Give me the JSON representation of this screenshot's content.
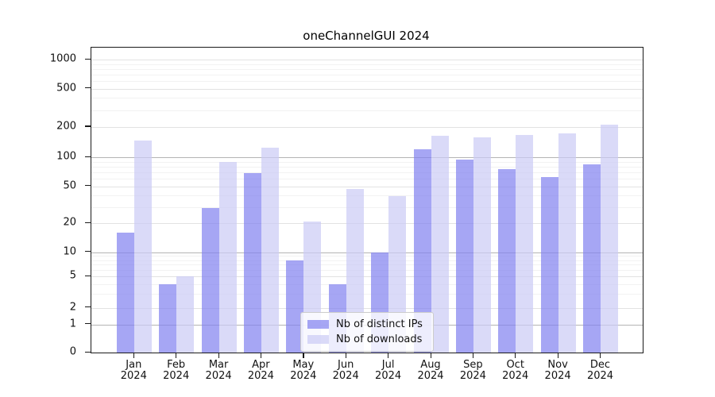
{
  "title": "oneChannelGUI 2024",
  "legend": {
    "items": [
      {
        "label": "Nb of distinct IPs",
        "color": "rgba(128,128,239,0.7)"
      },
      {
        "label": "Nb of downloads",
        "color": "rgba(202,202,245,0.7)"
      }
    ]
  },
  "chart_data": {
    "type": "bar",
    "title": "oneChannelGUI 2024",
    "categories": [
      "Jan 2024",
      "Feb 2024",
      "Mar 2024",
      "Apr 2024",
      "May 2024",
      "Jun 2024",
      "Jul 2024",
      "Aug 2024",
      "Sep 2024",
      "Oct 2024",
      "Nov 2024",
      "Dec 2024"
    ],
    "series": [
      {
        "name": "Nb of distinct IPs",
        "color": "rgba(128,128,239,0.7)",
        "values": [
          16,
          4,
          29,
          69,
          8,
          4,
          10,
          120,
          95,
          75,
          62,
          84
        ]
      },
      {
        "name": "Nb of downloads",
        "color": "rgba(202,202,245,0.7)",
        "values": [
          146,
          5,
          90,
          125,
          21,
          47,
          39,
          165,
          158,
          167,
          172,
          210
        ]
      }
    ],
    "xlabel": "",
    "ylabel": "",
    "yscale": "symlog",
    "ytick_labels": [
      0,
      1,
      2,
      5,
      10,
      20,
      50,
      100,
      200,
      500,
      1000
    ],
    "ylim": [
      0,
      1250
    ],
    "grid": "on",
    "legend_position": "lower center"
  }
}
